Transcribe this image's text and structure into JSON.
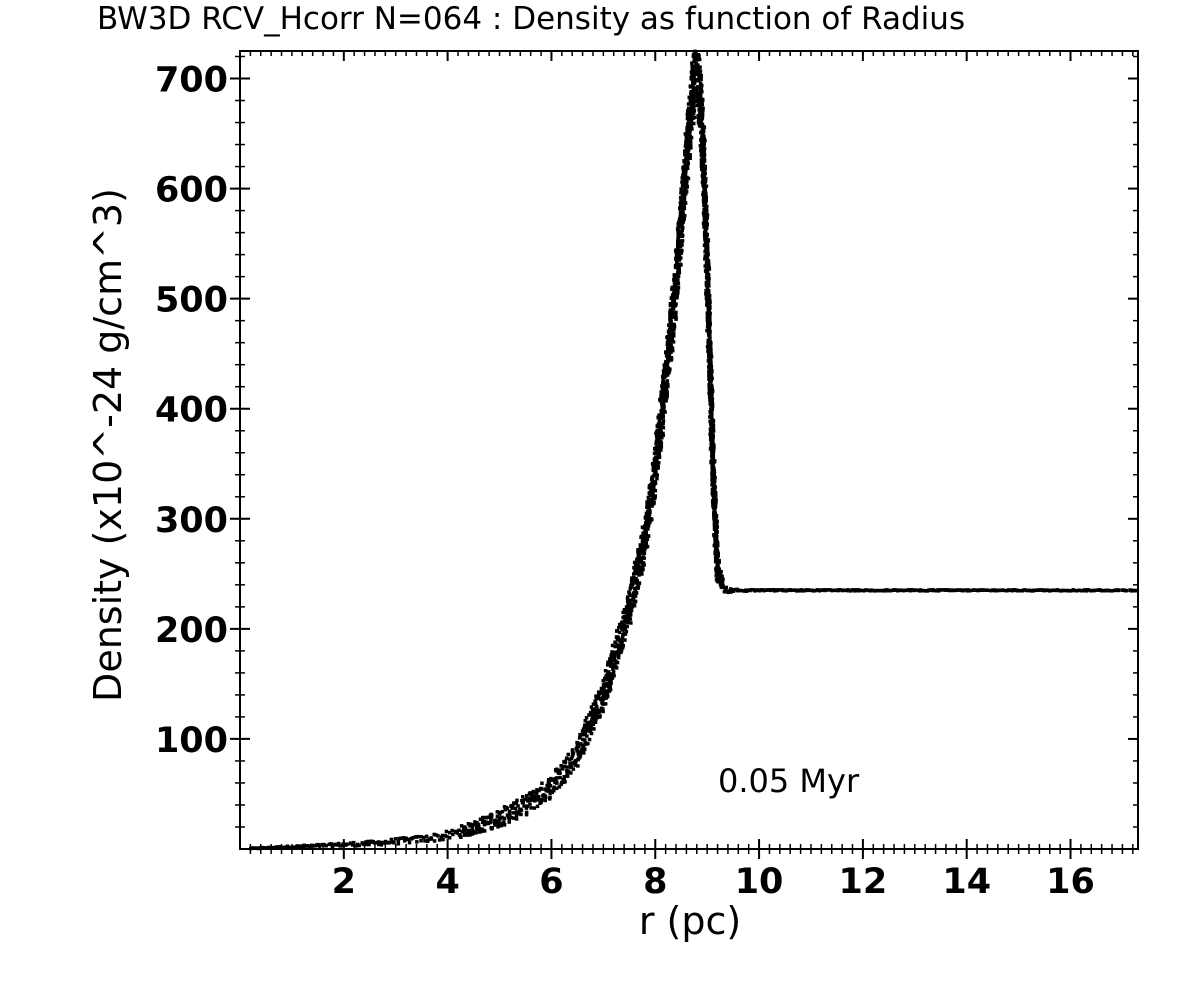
{
  "chart_data": {
    "type": "scatter",
    "title": "BW3D RCV_Hcorr N=064 : Density as function of Radius",
    "xlabel": "r (pc)",
    "ylabel": "Density (x10^-24 g/cm^3)",
    "xlim": [
      0,
      17.3
    ],
    "ylim": [
      0,
      725
    ],
    "x_ticks": [
      2,
      4,
      6,
      8,
      10,
      12,
      14,
      16
    ],
    "y_ticks": [
      100,
      200,
      300,
      400,
      500,
      600,
      700
    ],
    "x_minor_step": 0.2,
    "y_minor_step": 20,
    "grid": false,
    "legend": "none",
    "annotation": "0.05 Myr",
    "marker_color": "#000000",
    "series": [
      {
        "x": [
          0.2,
          0.5,
          1.0,
          1.5,
          2.0,
          2.5,
          3.0,
          3.5,
          4.0,
          4.5,
          5.0,
          5.5,
          6.0,
          6.5,
          7.0,
          7.5,
          7.8,
          8.0,
          8.2,
          8.4,
          8.5,
          8.6,
          8.7,
          8.75,
          8.8,
          8.85,
          8.9,
          8.95,
          9.0,
          9.05,
          9.1,
          9.15,
          9.2,
          9.3,
          9.4,
          9.6,
          10.0,
          11.0,
          12.0,
          13.0,
          14.0,
          15.0,
          16.0,
          17.0,
          17.3
        ],
        "y": [
          0.5,
          1,
          2,
          3,
          4,
          5,
          7,
          9,
          12,
          19,
          28,
          40,
          57,
          87,
          140,
          220,
          280,
          345,
          425,
          515,
          565,
          625,
          675,
          700,
          705,
          690,
          655,
          600,
          530,
          450,
          370,
          300,
          255,
          238,
          235,
          235,
          235,
          235,
          235,
          235,
          235,
          235,
          235,
          235,
          235
        ],
        "spread": [
          0.3,
          0.5,
          0.8,
          1,
          1.5,
          2,
          2.5,
          3,
          4,
          6,
          8,
          9,
          10,
          12,
          14,
          16,
          18,
          20,
          22,
          24,
          25,
          26,
          28,
          28,
          28,
          28,
          28,
          28,
          28,
          26,
          24,
          18,
          12,
          4,
          2,
          1,
          0.5,
          0.5,
          0.5,
          0.5,
          0.5,
          0.5,
          0.5,
          0.5,
          0.5
        ]
      }
    ]
  }
}
